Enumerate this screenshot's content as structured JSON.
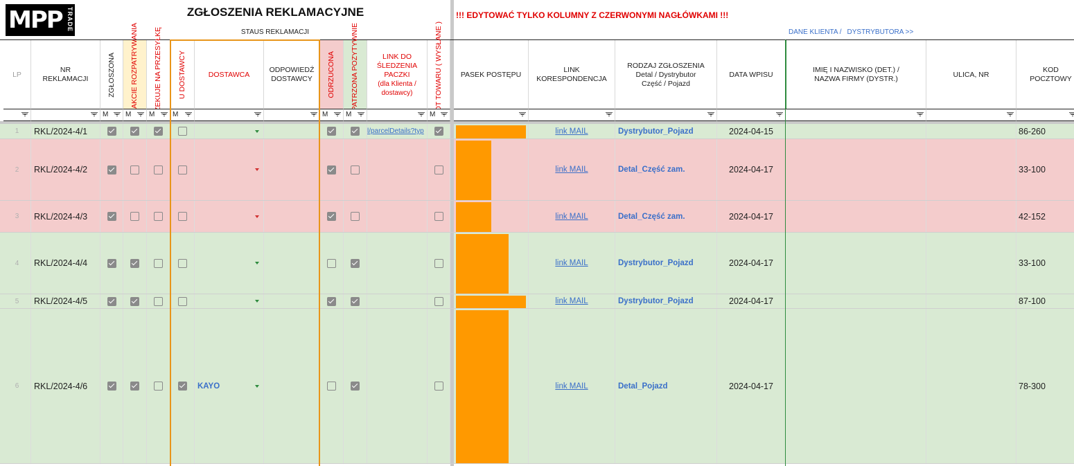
{
  "app": {
    "logo_text": "MPP",
    "logo_subtext": "TRADE",
    "title": "ZGŁOSZENIA REKLAMACYJNE",
    "warning": "!!! EDYTOWAĆ TYLKO KOLUMNY Z CZERWONYMI NAGŁÓWKAMI !!!",
    "status_band": "STAUS REKLAMACJI",
    "dane_klienta": "DANE KLIENTA /",
    "dystrybutora": "DYSTRYBUTORA >>"
  },
  "headers": {
    "lp": "LP",
    "nr": "NR REKLAMACJI",
    "zgloszona": "ZGŁOSZONA",
    "w_trakcie": "W TRAKCIE ROZPATRYWANIA",
    "oczekuje": "OCZEKUJE NA PRZESYŁKĘ",
    "u_dostawcy": "U DOSTAWCY",
    "dostawca": "DOSTAWCA",
    "odpowiedz": "ODPOWIEDŹ DOSTAWCY",
    "odrzucona": "ODRZUCONA",
    "rozpatrzona": "ROZPATRZONA POZYTYWNIE",
    "link_paczki": "LINK DO ŚLEDZENIA PACZKI",
    "link_paczki_sub": "(dla Klienta / dostawcy)",
    "zwrot": "ZWROT TOWARU ( WYSŁANE )",
    "pasek": "PASEK POSTĘPU",
    "link_kor": "LINK KORESPONDENCJA",
    "rodzaj": "RODZAJ ZGŁOSZENIA Detal / Dystrybutor Część / Pojazd",
    "data": "DATA WPISU",
    "imie": "IMIĘ I NAZWISKO (DET.) / NAZWA FIRMY (DYSTR.)",
    "ulica": "ULICA, NR",
    "kod": "KOD POCZTOWY"
  },
  "filter_m": "M",
  "colors": {
    "green_row": "#d9ead3",
    "red_row": "#f4cccc",
    "orange": "#ff9900",
    "red_text": "#e00000",
    "blue_text": "#3a6fc9"
  },
  "rows": [
    {
      "lp": "1",
      "nr": "RKL/2024-4/1",
      "zgl": true,
      "wt": true,
      "ocz": true,
      "udost": false,
      "dostawca": "",
      "dd": "green",
      "odrz": true,
      "rozp": true,
      "link": "l/parcelDetails?typ",
      "zwrot": true,
      "progress": 1.0,
      "mail": "link MAIL",
      "rodzaj": "Dystrybutor_Pojazd",
      "data": "2024-04-15",
      "kod": "86-260",
      "color": "green"
    },
    {
      "lp": "2",
      "nr": "RKL/2024-4/2",
      "zgl": true,
      "wt": false,
      "ocz": false,
      "udost": false,
      "dostawca": "",
      "dd": "red",
      "odrz": true,
      "rozp": false,
      "link": "",
      "zwrot": false,
      "progress": 0.5,
      "mail": "link MAIL",
      "rodzaj": "Detal_Część zam.",
      "data": "2024-04-17",
      "kod": "33-100",
      "color": "red"
    },
    {
      "lp": "3",
      "nr": "RKL/2024-4/3",
      "zgl": true,
      "wt": false,
      "ocz": false,
      "udost": false,
      "dostawca": "",
      "dd": "red",
      "odrz": true,
      "rozp": false,
      "link": "",
      "zwrot": false,
      "progress": 0.5,
      "mail": "link MAIL",
      "rodzaj": "Detal_Część zam.",
      "data": "2024-04-17",
      "kod": "42-152",
      "color": "red"
    },
    {
      "lp": "4",
      "nr": "RKL/2024-4/4",
      "zgl": true,
      "wt": true,
      "ocz": false,
      "udost": false,
      "dostawca": "",
      "dd": "green",
      "odrz": false,
      "rozp": true,
      "link": "",
      "zwrot": false,
      "progress": 0.75,
      "mail": "link MAIL",
      "rodzaj": "Dystrybutor_Pojazd",
      "data": "2024-04-17",
      "kod": "33-100",
      "color": "green"
    },
    {
      "lp": "5",
      "nr": "RKL/2024-4/5",
      "zgl": true,
      "wt": true,
      "ocz": false,
      "udost": false,
      "dostawca": "",
      "dd": "green",
      "odrz": true,
      "rozp": true,
      "link": "",
      "zwrot": false,
      "progress": 1.0,
      "mail": "link MAIL",
      "rodzaj": "Dystrybutor_Pojazd",
      "data": "2024-04-17",
      "kod": "87-100",
      "color": "green"
    },
    {
      "lp": "6",
      "nr": "RKL/2024-4/6",
      "zgl": true,
      "wt": true,
      "ocz": false,
      "udost": true,
      "dostawca": "KAYO",
      "dd": "green",
      "odrz": false,
      "rozp": true,
      "link": "",
      "zwrot": false,
      "progress": 0.75,
      "mail": "link MAIL",
      "rodzaj": "Detal_Pojazd",
      "data": "2024-04-17",
      "kod": "78-300",
      "color": "green"
    }
  ]
}
